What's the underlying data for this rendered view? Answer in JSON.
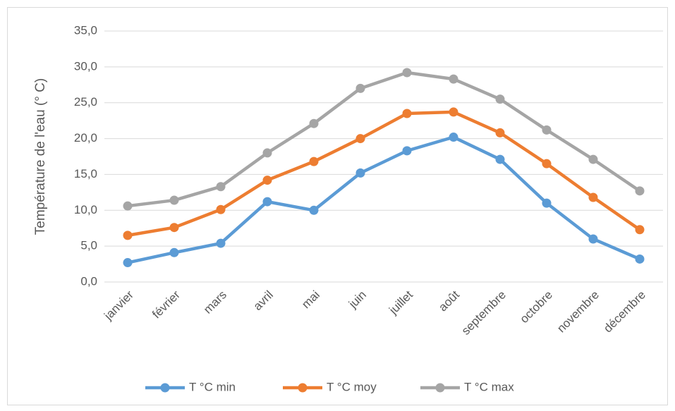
{
  "chart_data": {
    "type": "line",
    "y_label": "Température de l'eau (° C)",
    "categories": [
      "janvier",
      "février",
      "mars",
      "avril",
      "mai",
      "juin",
      "juillet",
      "août",
      "septembre",
      "octobre",
      "novembre",
      "décembre"
    ],
    "series": [
      {
        "name": "T °C min",
        "color": "#5b9bd5",
        "values": [
          2.7,
          4.1,
          5.4,
          11.2,
          10.0,
          15.2,
          18.3,
          20.2,
          17.1,
          11.0,
          6.0,
          3.2
        ]
      },
      {
        "name": "T °C moy",
        "color": "#ed7d31",
        "values": [
          6.5,
          7.6,
          10.1,
          14.2,
          16.8,
          20.0,
          23.5,
          23.7,
          20.8,
          16.5,
          11.8,
          7.3
        ]
      },
      {
        "name": "T °C max",
        "color": "#a5a5a5",
        "values": [
          10.6,
          11.4,
          13.3,
          18.0,
          22.1,
          27.0,
          29.2,
          28.3,
          25.5,
          21.2,
          17.1,
          12.7
        ]
      }
    ],
    "ylim": [
      0,
      35
    ],
    "yticks": [
      {
        "value": 0,
        "label": "0,0"
      },
      {
        "value": 5,
        "label": "5,0"
      },
      {
        "value": 10,
        "label": "10,0"
      },
      {
        "value": 15,
        "label": "15,0"
      },
      {
        "value": 20,
        "label": "20,0"
      },
      {
        "value": 25,
        "label": "25,0"
      },
      {
        "value": 30,
        "label": "30,0"
      },
      {
        "value": 35,
        "label": "35,0"
      }
    ],
    "grid": true,
    "legend": "bottom"
  }
}
